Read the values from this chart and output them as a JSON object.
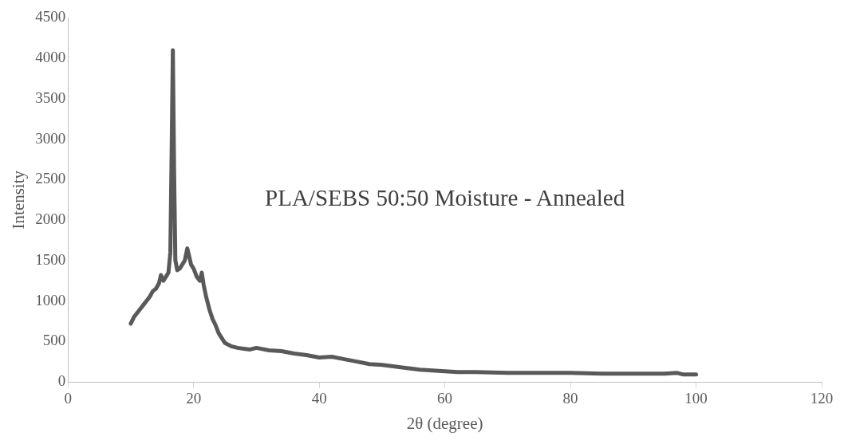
{
  "chart_data": {
    "type": "line",
    "xlabel": "2θ (degree)",
    "ylabel": "Intensity",
    "annotations": [
      "PLA/SEBS 50:50 Moisture - Annealed"
    ],
    "xlim": [
      0,
      120
    ],
    "xticks": [
      0,
      20,
      40,
      60,
      80,
      100,
      120
    ],
    "ylim": [
      0,
      4500
    ],
    "yticks": [
      0,
      500,
      1000,
      1500,
      2000,
      2500,
      3000,
      3500,
      4000,
      4500
    ],
    "grid": false,
    "legend": false,
    "marker": "none",
    "line_style": "solid",
    "series": [
      {
        "color": "#595959",
        "x": [
          10,
          10.5,
          11,
          12,
          13,
          13.5,
          14,
          14.5,
          14.8,
          15.2,
          15.6,
          16,
          16.3,
          16.5,
          16.7,
          16.9,
          17.1,
          17.4,
          17.8,
          18.2,
          18.6,
          19,
          19.3,
          19.6,
          20,
          20.5,
          21,
          21.3,
          21.6,
          22,
          22.5,
          23,
          23.5,
          24,
          25,
          26,
          27,
          28,
          29,
          30,
          32,
          34,
          36,
          38,
          40,
          42,
          44,
          46,
          48,
          50,
          52,
          54,
          56,
          58,
          60,
          62,
          65,
          70,
          75,
          80,
          85,
          90,
          95,
          97,
          98,
          100
        ],
        "values": [
          720,
          800,
          850,
          950,
          1050,
          1120,
          1150,
          1220,
          1320,
          1250,
          1300,
          1350,
          1600,
          2800,
          4100,
          2600,
          1500,
          1380,
          1400,
          1450,
          1500,
          1650,
          1550,
          1450,
          1400,
          1300,
          1250,
          1350,
          1200,
          1050,
          900,
          780,
          700,
          600,
          480,
          440,
          420,
          410,
          400,
          420,
          390,
          380,
          350,
          330,
          300,
          310,
          280,
          250,
          220,
          210,
          190,
          170,
          150,
          140,
          130,
          120,
          120,
          110,
          110,
          110,
          100,
          100,
          100,
          110,
          90,
          90
        ]
      }
    ]
  }
}
